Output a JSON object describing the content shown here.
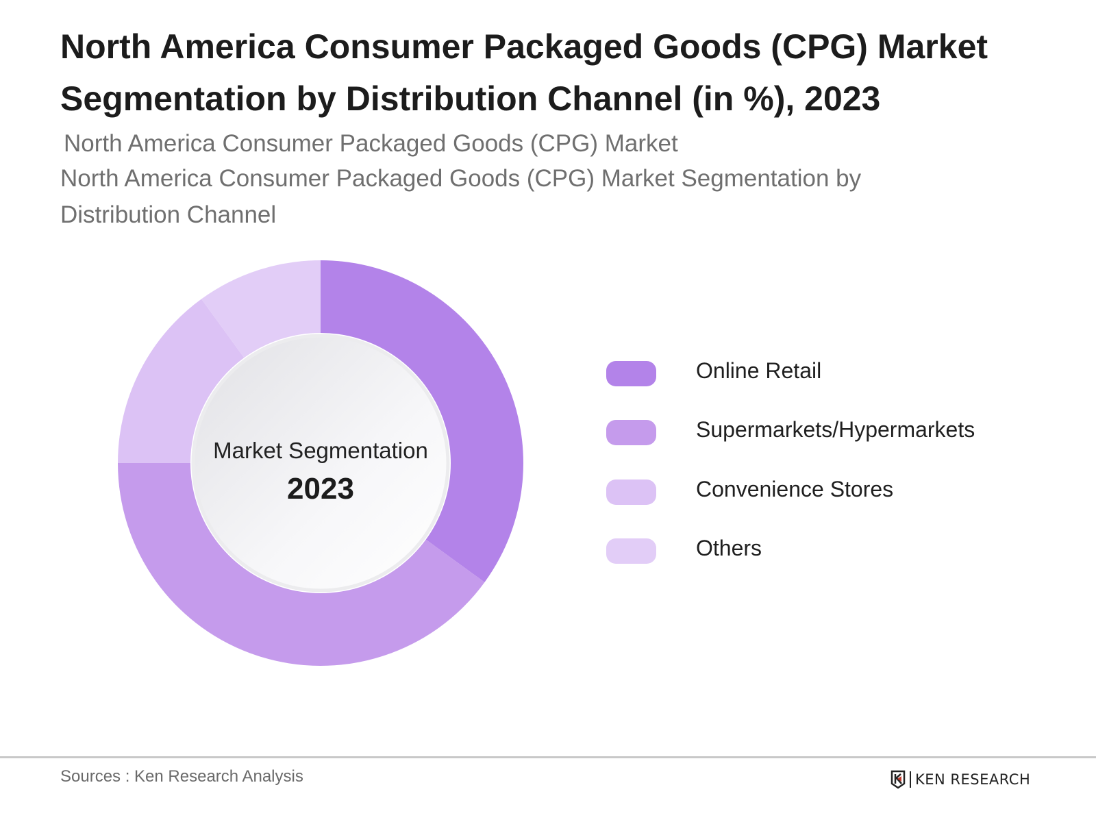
{
  "title": "North America Consumer Packaged Goods (CPG) Market Segmentation by Distribution Channel (in %), 2023",
  "subtitle_line1": "North America Consumer Packaged Goods (CPG) Market",
  "subtitle_line2": "North America Consumer Packaged Goods (CPG) Market Segmentation by Distribution Channel",
  "chart_data": {
    "type": "pie",
    "variant": "donut",
    "center_label": "Market Segmentation",
    "center_value": "2023",
    "legend_position": "right",
    "categories": [
      "Online Retail",
      "Supermarkets/Hypermarkets",
      "Convenience Stores",
      "Others"
    ],
    "values": [
      35,
      40,
      15,
      10
    ],
    "colors": [
      "#b383e9",
      "#c59bec",
      "#dcc2f5",
      "#e2cdf7"
    ]
  },
  "footer": {
    "sources": "Sources : Ken Research Analysis",
    "logo_text": "KEN RESEARCH"
  }
}
